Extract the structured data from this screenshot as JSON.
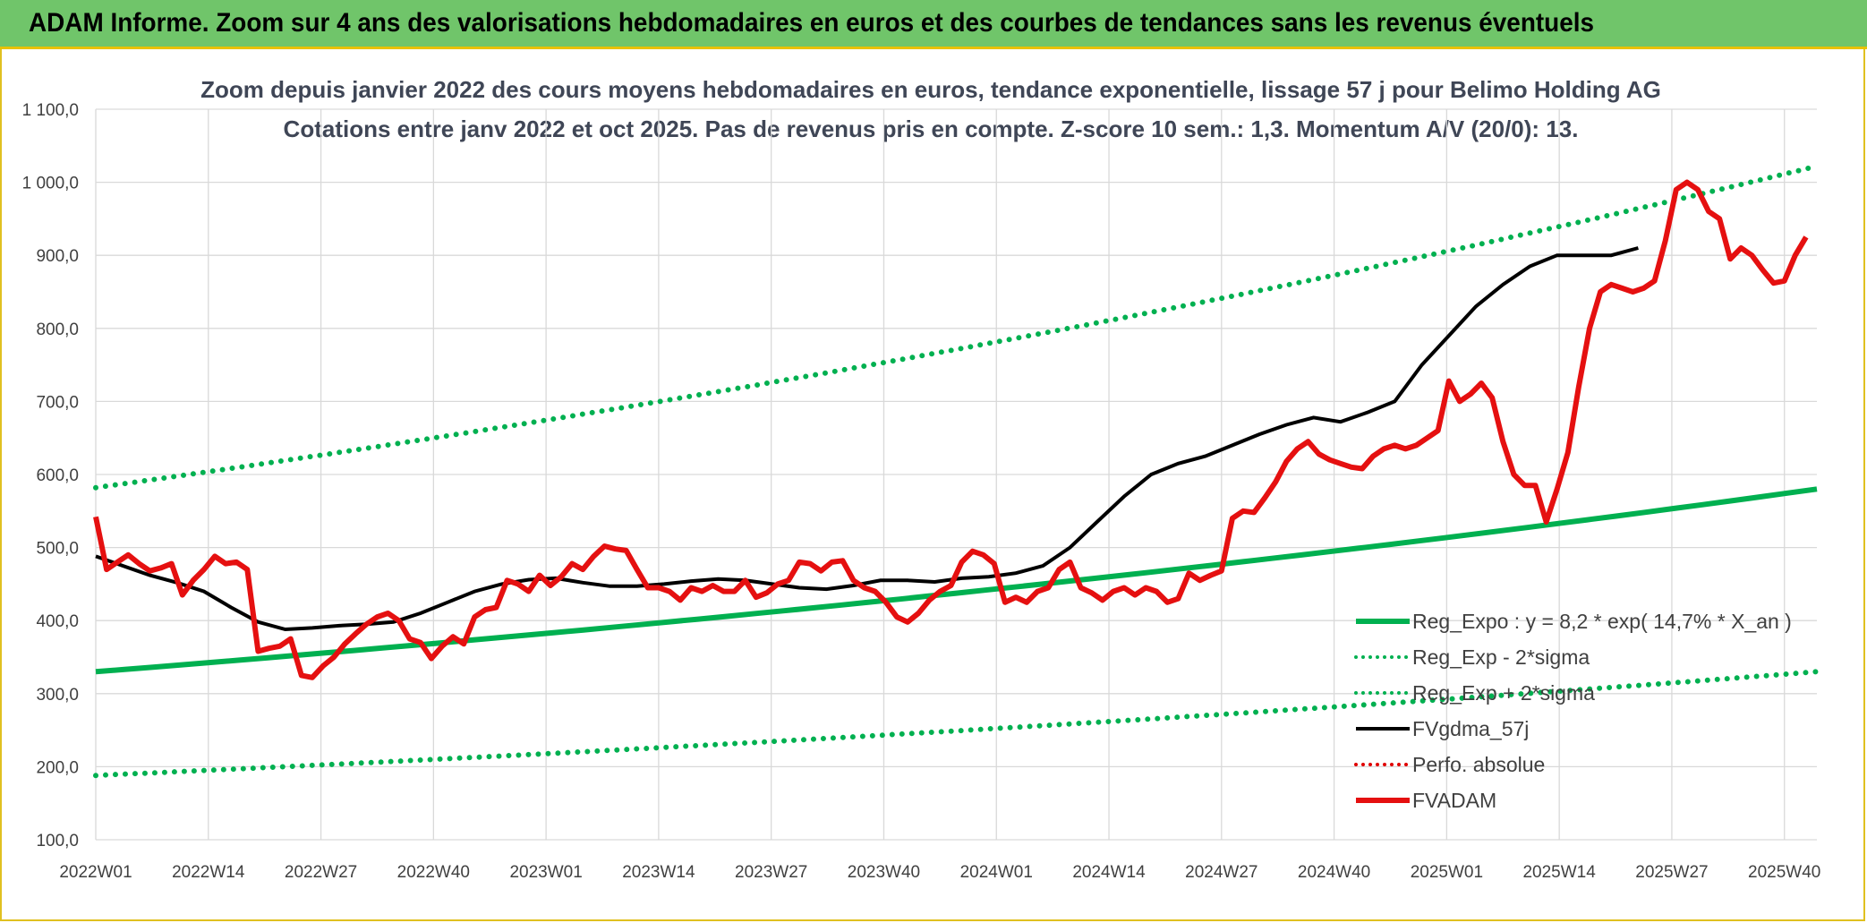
{
  "banner": {
    "title": "ADAM Informe. Zoom sur 4 ans des valorisations hebdomadaires en euros et des courbes de tendances sans les revenus éventuels"
  },
  "chart_data": {
    "type": "line",
    "title": "Zoom depuis janvier 2022 des cours moyens hebdomadaires en euros, tendance exponentielle, lissage 57 j pour Belimo Holding AG",
    "subtitle": "Cotations entre janv 2022 et oct 2025. Pas de revenus pris en compte. Z-score 10 sem.: 1,3. Momentum A/V (20/0): 13.",
    "xlabel": "",
    "ylabel": "",
    "ylim": [
      100,
      1100
    ],
    "y_ticks": [
      "100,0",
      "200,0",
      "300,0",
      "400,0",
      "500,0",
      "600,0",
      "700,0",
      "800,0",
      "900,0",
      "1 000,0",
      "1 100,0"
    ],
    "x_categories": [
      "2022W01",
      "2022W14",
      "2022W27",
      "2022W40",
      "2023W01",
      "2023W14",
      "2023W27",
      "2023W40",
      "2024W01",
      "2024W14",
      "2024W27",
      "2024W40",
      "2025W01",
      "2025W14",
      "2025W27",
      "2025W40"
    ],
    "x_range_weeks": [
      0,
      201
    ],
    "grid": true,
    "legend_position": "bottom-right",
    "series": [
      {
        "name": "Reg_Expo : y = 8,2 * exp( 14,7% *  X_an )",
        "color": "#00b050",
        "style": "solid",
        "points": [
          [
            0,
            330
          ],
          [
            201,
            580
          ]
        ]
      },
      {
        "name": "Reg_Exp - 2*sigma",
        "color": "#00b050",
        "style": "dotted",
        "points": [
          [
            0,
            188
          ],
          [
            201,
            330
          ]
        ]
      },
      {
        "name": "Reg_Exp + 2*sigma",
        "color": "#00b050",
        "style": "dotted",
        "points": [
          [
            0,
            582
          ],
          [
            201,
            1022
          ]
        ]
      },
      {
        "name": "FVgdma_57j",
        "color": "#000000",
        "style": "solid",
        "points": [
          [
            0,
            488
          ],
          [
            5,
            475
          ],
          [
            10,
            462
          ],
          [
            15,
            452
          ],
          [
            20,
            440
          ],
          [
            25,
            418
          ],
          [
            30,
            398
          ],
          [
            35,
            388
          ],
          [
            40,
            390
          ],
          [
            45,
            393
          ],
          [
            50,
            395
          ],
          [
            55,
            398
          ],
          [
            60,
            410
          ],
          [
            65,
            425
          ],
          [
            70,
            440
          ],
          [
            75,
            450
          ],
          [
            80,
            456
          ],
          [
            85,
            458
          ],
          [
            90,
            452
          ],
          [
            95,
            447
          ],
          [
            100,
            447
          ],
          [
            105,
            450
          ],
          [
            110,
            454
          ],
          [
            115,
            457
          ],
          [
            120,
            455
          ],
          [
            125,
            450
          ],
          [
            130,
            445
          ],
          [
            135,
            443
          ],
          [
            140,
            448
          ],
          [
            145,
            455
          ],
          [
            150,
            455
          ],
          [
            155,
            453
          ],
          [
            160,
            458
          ],
          [
            165,
            460
          ],
          [
            170,
            465
          ],
          [
            175,
            475
          ],
          [
            180,
            500
          ],
          [
            185,
            535
          ],
          [
            190,
            570
          ],
          [
            195,
            600
          ],
          [
            200,
            615
          ],
          [
            205,
            625
          ],
          [
            210,
            640
          ],
          [
            215,
            655
          ],
          [
            220,
            668
          ],
          [
            225,
            678
          ],
          [
            230,
            672
          ],
          [
            235,
            685
          ],
          [
            240,
            700
          ],
          [
            245,
            750
          ],
          [
            250,
            790
          ],
          [
            255,
            830
          ],
          [
            260,
            860
          ],
          [
            265,
            885
          ],
          [
            270,
            900
          ],
          [
            275,
            900
          ],
          [
            280,
            900
          ],
          [
            285,
            910
          ]
        ]
      },
      {
        "name": "Perfo. absolue",
        "color": "#e00000",
        "style": "dotted",
        "points": []
      },
      {
        "name": "FVADAM",
        "color": "#e51010",
        "style": "solid",
        "points": [
          [
            0,
            542
          ],
          [
            2,
            470
          ],
          [
            4,
            480
          ],
          [
            6,
            490
          ],
          [
            8,
            478
          ],
          [
            10,
            468
          ],
          [
            12,
            472
          ],
          [
            14,
            478
          ],
          [
            16,
            435
          ],
          [
            18,
            455
          ],
          [
            20,
            470
          ],
          [
            22,
            488
          ],
          [
            24,
            478
          ],
          [
            26,
            480
          ],
          [
            28,
            470
          ],
          [
            30,
            358
          ],
          [
            32,
            362
          ],
          [
            34,
            365
          ],
          [
            36,
            375
          ],
          [
            38,
            325
          ],
          [
            40,
            322
          ],
          [
            42,
            338
          ],
          [
            44,
            350
          ],
          [
            46,
            368
          ],
          [
            48,
            382
          ],
          [
            50,
            395
          ],
          [
            52,
            405
          ],
          [
            54,
            410
          ],
          [
            56,
            400
          ],
          [
            58,
            375
          ],
          [
            60,
            370
          ],
          [
            62,
            348
          ],
          [
            64,
            365
          ],
          [
            66,
            378
          ],
          [
            68,
            368
          ],
          [
            70,
            405
          ],
          [
            72,
            415
          ],
          [
            74,
            418
          ],
          [
            76,
            455
          ],
          [
            78,
            450
          ],
          [
            80,
            440
          ],
          [
            82,
            462
          ],
          [
            84,
            448
          ],
          [
            86,
            460
          ],
          [
            88,
            478
          ],
          [
            90,
            470
          ],
          [
            92,
            488
          ],
          [
            94,
            502
          ],
          [
            96,
            498
          ],
          [
            98,
            496
          ],
          [
            100,
            470
          ],
          [
            102,
            445
          ],
          [
            104,
            445
          ],
          [
            106,
            440
          ],
          [
            108,
            428
          ],
          [
            110,
            445
          ],
          [
            112,
            440
          ],
          [
            114,
            448
          ],
          [
            116,
            440
          ],
          [
            118,
            440
          ],
          [
            120,
            455
          ],
          [
            122,
            432
          ],
          [
            124,
            438
          ],
          [
            126,
            450
          ],
          [
            128,
            455
          ],
          [
            130,
            480
          ],
          [
            132,
            478
          ],
          [
            134,
            468
          ],
          [
            136,
            480
          ],
          [
            138,
            482
          ],
          [
            140,
            455
          ],
          [
            142,
            445
          ],
          [
            144,
            440
          ],
          [
            146,
            425
          ],
          [
            148,
            405
          ],
          [
            150,
            398
          ],
          [
            152,
            410
          ],
          [
            154,
            428
          ],
          [
            156,
            440
          ],
          [
            158,
            448
          ],
          [
            160,
            480
          ],
          [
            162,
            495
          ],
          [
            164,
            490
          ],
          [
            166,
            478
          ],
          [
            168,
            425
          ],
          [
            170,
            432
          ],
          [
            172,
            425
          ],
          [
            174,
            440
          ],
          [
            176,
            445
          ],
          [
            178,
            470
          ],
          [
            180,
            480
          ],
          [
            182,
            445
          ],
          [
            184,
            438
          ],
          [
            186,
            428
          ],
          [
            188,
            440
          ],
          [
            190,
            445
          ],
          [
            192,
            435
          ],
          [
            194,
            445
          ],
          [
            196,
            440
          ],
          [
            198,
            425
          ],
          [
            200,
            430
          ],
          [
            202,
            465
          ],
          [
            204,
            455
          ],
          [
            206,
            462
          ],
          [
            208,
            468
          ],
          [
            210,
            540
          ],
          [
            212,
            550
          ],
          [
            214,
            548
          ],
          [
            216,
            568
          ],
          [
            218,
            590
          ],
          [
            220,
            618
          ],
          [
            222,
            635
          ],
          [
            224,
            645
          ],
          [
            226,
            628
          ],
          [
            228,
            620
          ],
          [
            230,
            615
          ],
          [
            232,
            610
          ],
          [
            234,
            608
          ],
          [
            236,
            625
          ],
          [
            238,
            635
          ],
          [
            240,
            640
          ],
          [
            242,
            635
          ],
          [
            244,
            640
          ],
          [
            246,
            650
          ],
          [
            248,
            660
          ],
          [
            250,
            728
          ],
          [
            252,
            700
          ],
          [
            254,
            710
          ],
          [
            256,
            725
          ],
          [
            258,
            705
          ],
          [
            260,
            645
          ],
          [
            262,
            600
          ],
          [
            264,
            585
          ],
          [
            266,
            585
          ],
          [
            268,
            535
          ],
          [
            270,
            580
          ],
          [
            272,
            630
          ],
          [
            274,
            720
          ],
          [
            276,
            800
          ],
          [
            278,
            850
          ],
          [
            280,
            860
          ],
          [
            282,
            855
          ],
          [
            284,
            850
          ],
          [
            286,
            855
          ],
          [
            288,
            865
          ],
          [
            290,
            920
          ],
          [
            292,
            990
          ],
          [
            294,
            1000
          ],
          [
            296,
            990
          ],
          [
            298,
            960
          ],
          [
            300,
            950
          ],
          [
            302,
            895
          ],
          [
            304,
            910
          ],
          [
            306,
            900
          ],
          [
            308,
            880
          ],
          [
            310,
            862
          ],
          [
            312,
            865
          ],
          [
            314,
            900
          ],
          [
            316,
            925
          ]
        ]
      }
    ]
  }
}
